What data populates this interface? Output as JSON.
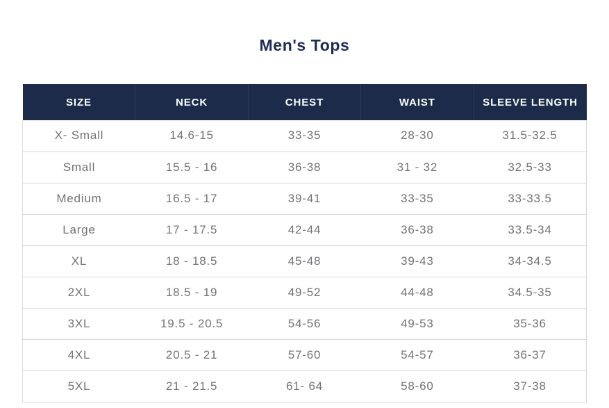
{
  "title": "Men's Tops",
  "colors": {
    "header_background": "#1c2b4a",
    "header_text": "#ffffff",
    "title_text": "#1d2d55",
    "body_text": "#717377",
    "row_border": "#d6d7d8"
  },
  "chart_data": {
    "type": "table",
    "title": "Men's Tops",
    "columns": [
      "SIZE",
      "NECK",
      "CHEST",
      "WAIST",
      "SLEEVE LENGTH"
    ],
    "rows": [
      [
        "X- Small",
        "14.6-15",
        "33-35",
        "28-30",
        "31.5-32.5"
      ],
      [
        "Small",
        "15.5 - 16",
        "36-38",
        "31 - 32",
        "32.5-33"
      ],
      [
        "Medium",
        "16.5 - 17",
        "39-41",
        "33-35",
        "33-33.5"
      ],
      [
        "Large",
        "17 - 17.5",
        "42-44",
        "36-38",
        "33.5-34"
      ],
      [
        "XL",
        "18 - 18.5",
        "45-48",
        "39-43",
        "34-34.5"
      ],
      [
        "2XL",
        "18.5 - 19",
        "49-52",
        "44-48",
        "34.5-35"
      ],
      [
        "3XL",
        "19.5 - 20.5",
        "54-56",
        "49-53",
        "35-36"
      ],
      [
        "4XL",
        "20.5 - 21",
        "57-60",
        "54-57",
        "36-37"
      ],
      [
        "5XL",
        "21 - 21.5",
        "61- 64",
        "58-60",
        "37-38"
      ]
    ]
  }
}
